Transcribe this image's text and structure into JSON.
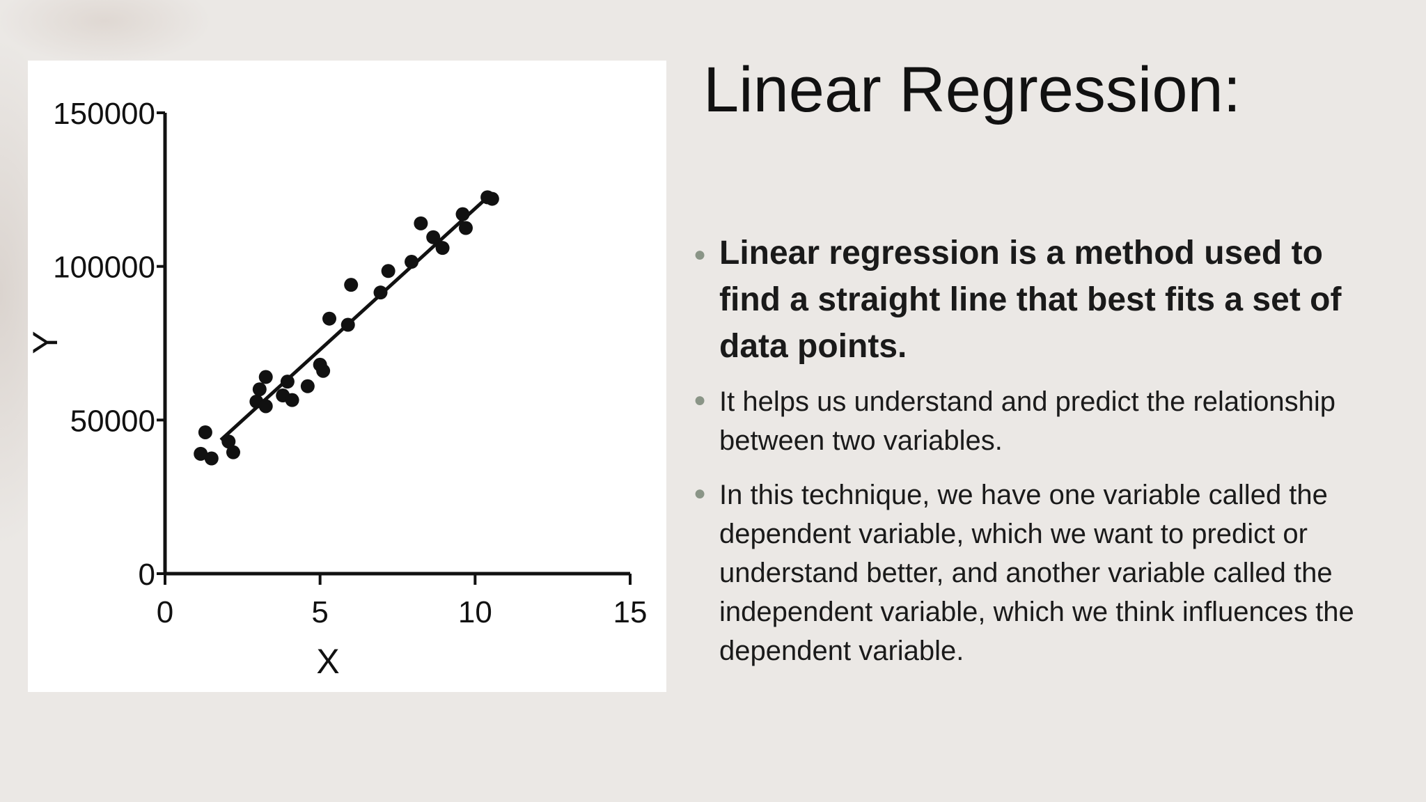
{
  "slide": {
    "title": "Linear Regression:",
    "bullets": [
      "Linear regression is a method used to find a straight line that best fits a set of data points.",
      "It helps us understand and predict the relationship between two variables.",
      "In this technique, we have one variable called the dependent variable, which we want to predict or understand better, and another variable called the independent variable, which we think influences the dependent variable."
    ]
  },
  "chart_data": {
    "type": "scatter",
    "xlabel": "X",
    "ylabel": "Y",
    "xlim": [
      0,
      15
    ],
    "ylim": [
      0,
      150000
    ],
    "x_ticks": [
      0,
      5,
      10,
      15
    ],
    "x_tick_labels": [
      "0",
      "5",
      "10",
      "15"
    ],
    "y_ticks": [
      0,
      50000,
      100000,
      150000
    ],
    "y_tick_labels": [
      "0",
      "50000",
      "100000",
      "150000"
    ],
    "grid": false,
    "legend": "none",
    "point_color": "#111111",
    "series": [
      {
        "x": [
          1.15,
          1.3,
          1.5,
          2.05,
          2.2,
          2.95,
          3.05,
          3.25,
          3.25,
          3.8,
          3.95,
          4.1,
          4.6,
          5.0,
          5.1,
          5.3,
          5.9,
          6.0,
          6.95,
          7.2,
          7.95,
          8.25,
          8.65,
          8.95,
          9.6,
          9.7,
          10.4,
          10.55
        ],
        "y": [
          39000,
          46000,
          37500,
          43000,
          39500,
          56000,
          60000,
          64000,
          54500,
          58000,
          62500,
          56500,
          61000,
          68000,
          66000,
          83000,
          81000,
          94000,
          91500,
          98500,
          101500,
          114000,
          109500,
          106000,
          117000,
          112500,
          122500,
          122000
        ]
      }
    ],
    "fit_line": {
      "x": [
        1.8,
        10.4
      ],
      "y": [
        43500,
        122500
      ]
    }
  }
}
